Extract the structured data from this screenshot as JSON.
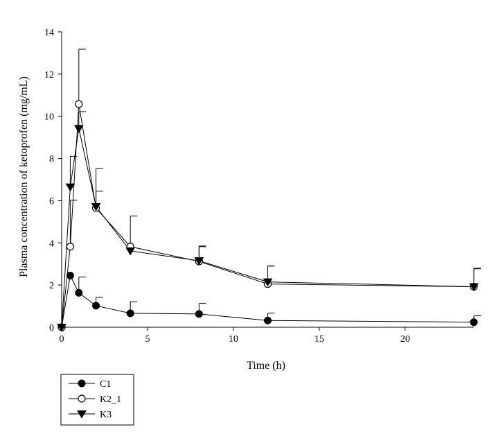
{
  "chart_data": {
    "type": "line",
    "xlabel": "Time (h)",
    "ylabel": "Plasma concentration of ketoprofen (mg/mL)",
    "xlim": [
      0,
      24
    ],
    "ylim": [
      0,
      14
    ],
    "x_ticks": [
      0,
      5,
      10,
      15,
      20
    ],
    "y_ticks": [
      0,
      2,
      4,
      6,
      8,
      10,
      12,
      14
    ],
    "grid": false,
    "legend_position": "bottom-left",
    "error_bars": "upper",
    "x": [
      0,
      0.5,
      1,
      2,
      4,
      8,
      12,
      24
    ],
    "series": [
      {
        "name": "C1",
        "marker": "filled-circle",
        "color": "#000000",
        "values": [
          0,
          2.45,
          1.63,
          1.02,
          0.66,
          0.63,
          0.32,
          0.24
        ],
        "error_upper": [
          0,
          0,
          0.75,
          0.4,
          0.55,
          0.5,
          0.35,
          0.3
        ]
      },
      {
        "name": "K2_1",
        "marker": "open-circle",
        "color": "#000000",
        "values": [
          0,
          3.82,
          10.58,
          5.65,
          3.82,
          3.12,
          2.05,
          1.92
        ],
        "error_upper": [
          0,
          2.2,
          2.6,
          0.8,
          1.45,
          0.7,
          0.85,
          0.88
        ]
      },
      {
        "name": "K3",
        "marker": "filled-triangle-down",
        "color": "#000000",
        "values": [
          0,
          6.65,
          9.42,
          5.72,
          3.62,
          3.15,
          2.15,
          1.92
        ],
        "error_upper": [
          0,
          1.45,
          0.8,
          1.8,
          0,
          0.7,
          0.75,
          0.85
        ]
      }
    ]
  }
}
